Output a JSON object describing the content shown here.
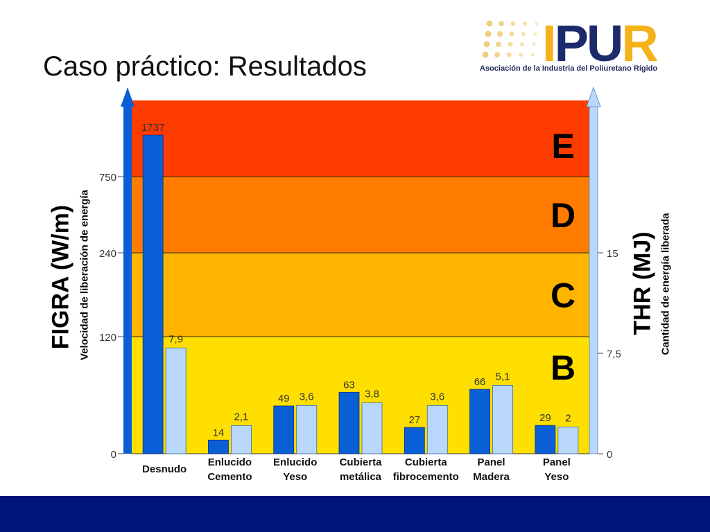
{
  "slide": {
    "title": "Caso práctico: Resultados"
  },
  "logo": {
    "wordmark": "IPUR",
    "tagline": "Asociación de la Industria del Poliuretano Rígido",
    "colors": {
      "dots": "#f0c870",
      "letters_dark": "#1c2a6b",
      "letters_accent": "#f5b21a"
    }
  },
  "footer": {
    "color": "#00157a"
  },
  "chart_data": {
    "type": "bar",
    "categories": [
      [
        "Desnudo"
      ],
      [
        "Enlucido",
        "Cemento"
      ],
      [
        "Enlucido",
        "Yeso"
      ],
      [
        "Cubierta",
        "metálica"
      ],
      [
        "Cubierta",
        "fibrocemento"
      ],
      [
        "Panel",
        "Madera"
      ],
      [
        "Panel",
        "Yeso"
      ]
    ],
    "left_axis": {
      "title": "FIGRA (W/m)",
      "subtitle": "Velocidad de liberación de energía",
      "ticks": [
        {
          "value": 0,
          "label": "0"
        },
        {
          "value": 120,
          "label": "120"
        },
        {
          "value": 240,
          "label": "240"
        },
        {
          "value": 750,
          "label": "750"
        }
      ],
      "scale": "piecewise (class thresholds at 120, 240, 750)"
    },
    "right_axis": {
      "title": "THR (MJ)",
      "subtitle": "Cantidad de energía liberada",
      "ticks": [
        {
          "value": 0,
          "label": "0"
        },
        {
          "value": 7.5,
          "label": "7,5"
        },
        {
          "value": 15,
          "label": "15"
        }
      ]
    },
    "series": [
      {
        "name": "FIGRA (W/m)",
        "axis": "left",
        "color": "#0a5fd6",
        "values": [
          1737,
          14,
          49,
          63,
          27,
          66,
          29
        ],
        "labels": [
          "1737",
          "14",
          "49",
          "63",
          "27",
          "66",
          "29"
        ]
      },
      {
        "name": "THR (MJ)",
        "axis": "right",
        "color": "#b9d7fb",
        "values": [
          7.9,
          2.1,
          3.6,
          3.8,
          3.6,
          5.1,
          2
        ],
        "labels": [
          "7,9",
          "2,1",
          "3,6",
          "3,8",
          "3,6",
          "5,1",
          "2"
        ]
      }
    ],
    "bands": [
      {
        "label": "B",
        "from": 0,
        "to": 120,
        "color": "#ffdf00"
      },
      {
        "label": "C",
        "from": 120,
        "to": 240,
        "color": "#ffb400"
      },
      {
        "label": "D",
        "from": 240,
        "to": 750,
        "color": "#ff7c00"
      },
      {
        "label": "E",
        "from": 750,
        "to": null,
        "color": "#ff3c00"
      }
    ],
    "axis_arrow_colors": {
      "left": "#0a5fd6",
      "right": "#b9d7fb"
    },
    "grid": false,
    "legend": "none"
  }
}
